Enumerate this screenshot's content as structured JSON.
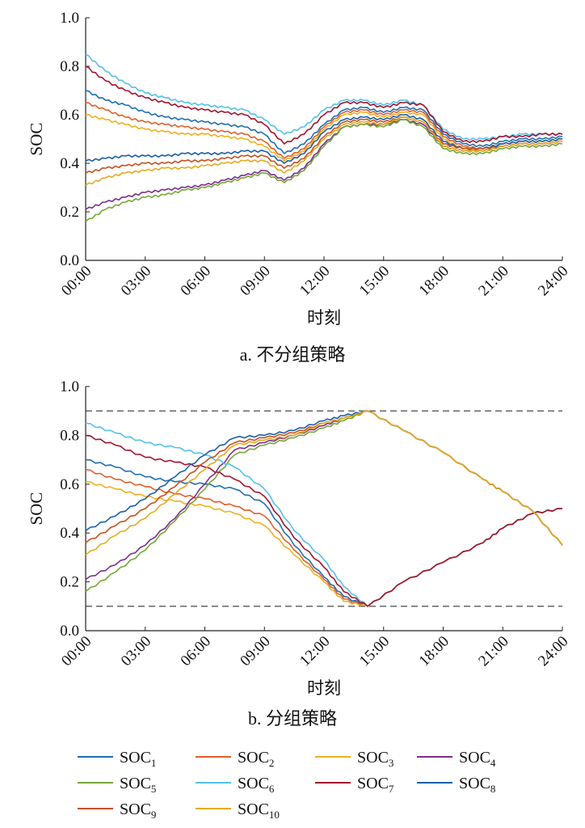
{
  "chart_data": [
    {
      "type": "line",
      "caption": "a. 不分组策略",
      "xlabel": "时刻",
      "ylabel": "SOC",
      "x_ticks": [
        "00:00",
        "03:00",
        "06:00",
        "09:00",
        "12:00",
        "15:00",
        "18:00",
        "21:00",
        "24:00"
      ],
      "y_ticks": [
        "0.0",
        "0.2",
        "0.4",
        "0.6",
        "0.8",
        "1.0"
      ],
      "xlim_hours": [
        0,
        24
      ],
      "ylim": [
        0,
        1
      ],
      "x_hours": [
        0,
        1,
        2,
        3,
        4,
        5,
        6,
        7,
        8,
        9,
        10,
        11,
        12,
        13,
        14,
        15,
        16,
        17,
        18,
        19,
        20,
        21,
        22,
        23,
        24
      ],
      "series": [
        {
          "name": "SOC1",
          "values": [
            0.7,
            0.66,
            0.64,
            0.61,
            0.59,
            0.58,
            0.57,
            0.56,
            0.55,
            0.52,
            0.44,
            0.48,
            0.56,
            0.62,
            0.63,
            0.61,
            0.63,
            0.62,
            0.52,
            0.48,
            0.47,
            0.49,
            0.5,
            0.5,
            0.51
          ]
        },
        {
          "name": "SOC2",
          "values": [
            0.65,
            0.62,
            0.59,
            0.57,
            0.56,
            0.55,
            0.54,
            0.53,
            0.52,
            0.49,
            0.42,
            0.46,
            0.55,
            0.61,
            0.62,
            0.6,
            0.62,
            0.61,
            0.51,
            0.47,
            0.46,
            0.48,
            0.49,
            0.49,
            0.5
          ]
        },
        {
          "name": "SOC3",
          "values": [
            0.6,
            0.58,
            0.56,
            0.54,
            0.53,
            0.52,
            0.52,
            0.51,
            0.5,
            0.47,
            0.41,
            0.45,
            0.54,
            0.6,
            0.61,
            0.59,
            0.61,
            0.6,
            0.5,
            0.46,
            0.45,
            0.47,
            0.48,
            0.48,
            0.49
          ]
        },
        {
          "name": "SOC4",
          "values": [
            0.21,
            0.24,
            0.26,
            0.28,
            0.29,
            0.3,
            0.31,
            0.33,
            0.35,
            0.37,
            0.33,
            0.38,
            0.48,
            0.55,
            0.56,
            0.56,
            0.58,
            0.56,
            0.47,
            0.45,
            0.45,
            0.47,
            0.48,
            0.48,
            0.49
          ]
        },
        {
          "name": "SOC5",
          "values": [
            0.16,
            0.21,
            0.24,
            0.26,
            0.27,
            0.29,
            0.3,
            0.32,
            0.34,
            0.36,
            0.32,
            0.37,
            0.47,
            0.55,
            0.56,
            0.55,
            0.58,
            0.55,
            0.46,
            0.44,
            0.44,
            0.46,
            0.47,
            0.47,
            0.48
          ]
        },
        {
          "name": "SOC6",
          "values": [
            0.85,
            0.78,
            0.73,
            0.69,
            0.67,
            0.65,
            0.64,
            0.63,
            0.62,
            0.58,
            0.52,
            0.55,
            0.62,
            0.66,
            0.66,
            0.64,
            0.66,
            0.64,
            0.54,
            0.5,
            0.5,
            0.51,
            0.52,
            0.52,
            0.52
          ]
        },
        {
          "name": "SOC7",
          "values": [
            0.8,
            0.74,
            0.7,
            0.67,
            0.65,
            0.63,
            0.62,
            0.61,
            0.6,
            0.56,
            0.48,
            0.52,
            0.6,
            0.65,
            0.65,
            0.63,
            0.65,
            0.64,
            0.53,
            0.49,
            0.49,
            0.51,
            0.51,
            0.52,
            0.52
          ]
        },
        {
          "name": "SOC8",
          "values": [
            0.41,
            0.42,
            0.43,
            0.43,
            0.43,
            0.44,
            0.44,
            0.44,
            0.45,
            0.45,
            0.4,
            0.44,
            0.53,
            0.58,
            0.59,
            0.58,
            0.6,
            0.58,
            0.49,
            0.46,
            0.46,
            0.48,
            0.49,
            0.49,
            0.5
          ]
        },
        {
          "name": "SOC9",
          "values": [
            0.36,
            0.38,
            0.39,
            0.4,
            0.4,
            0.41,
            0.41,
            0.42,
            0.43,
            0.43,
            0.38,
            0.42,
            0.51,
            0.57,
            0.58,
            0.57,
            0.59,
            0.57,
            0.48,
            0.46,
            0.46,
            0.47,
            0.48,
            0.48,
            0.49
          ]
        },
        {
          "name": "SOC10",
          "values": [
            0.31,
            0.34,
            0.36,
            0.37,
            0.38,
            0.38,
            0.39,
            0.4,
            0.41,
            0.41,
            0.36,
            0.41,
            0.5,
            0.56,
            0.57,
            0.56,
            0.59,
            0.57,
            0.47,
            0.45,
            0.45,
            0.47,
            0.48,
            0.48,
            0.49
          ]
        }
      ]
    },
    {
      "type": "line",
      "caption": "b. 分组策略",
      "xlabel": "时刻",
      "ylabel": "SOC",
      "x_ticks": [
        "00:00",
        "03:00",
        "06:00",
        "09:00",
        "12:00",
        "15:00",
        "18:00",
        "21:00",
        "24:00"
      ],
      "y_ticks": [
        "0.0",
        "0.2",
        "0.4",
        "0.6",
        "0.8",
        "1.0"
      ],
      "xlim_hours": [
        0,
        24
      ],
      "ylim": [
        0,
        1
      ],
      "limits": [
        0.9,
        0.1
      ],
      "x_hours": [
        0,
        1.5,
        3,
        4.5,
        6,
        7.5,
        9,
        10.5,
        12,
        13,
        14.2,
        16,
        18,
        20,
        21,
        22.5,
        24
      ],
      "series": [
        {
          "name": "SOC1",
          "values": [
            0.7,
            0.67,
            0.63,
            0.61,
            0.6,
            0.58,
            0.52,
            0.35,
            0.22,
            0.14,
            0.1,
            0.2,
            0.28,
            0.36,
            0.42,
            0.48,
            0.5
          ]
        },
        {
          "name": "SOC2",
          "values": [
            0.66,
            0.62,
            0.59,
            0.56,
            0.54,
            0.51,
            0.47,
            0.33,
            0.21,
            0.13,
            0.1,
            0.2,
            0.28,
            0.36,
            0.42,
            0.48,
            0.5
          ]
        },
        {
          "name": "SOC3",
          "values": [
            0.61,
            0.58,
            0.55,
            0.53,
            0.51,
            0.48,
            0.43,
            0.31,
            0.2,
            0.12,
            0.1,
            0.2,
            0.28,
            0.36,
            0.42,
            0.48,
            0.5
          ]
        },
        {
          "name": "SOC4",
          "values": [
            0.21,
            0.27,
            0.35,
            0.46,
            0.6,
            0.74,
            0.77,
            0.8,
            0.84,
            0.87,
            0.9,
            0.82,
            0.73,
            0.62,
            0.57,
            0.49,
            0.35
          ]
        },
        {
          "name": "SOC5",
          "values": [
            0.16,
            0.24,
            0.33,
            0.45,
            0.58,
            0.72,
            0.76,
            0.79,
            0.83,
            0.86,
            0.9,
            0.82,
            0.73,
            0.62,
            0.57,
            0.49,
            0.35
          ]
        },
        {
          "name": "SOC6",
          "values": [
            0.85,
            0.81,
            0.77,
            0.75,
            0.72,
            0.67,
            0.58,
            0.41,
            0.29,
            0.18,
            0.1,
            0.2,
            0.28,
            0.36,
            0.42,
            0.48,
            0.5
          ]
        },
        {
          "name": "SOC7",
          "values": [
            0.8,
            0.76,
            0.71,
            0.69,
            0.67,
            0.62,
            0.55,
            0.38,
            0.26,
            0.16,
            0.1,
            0.2,
            0.28,
            0.36,
            0.42,
            0.48,
            0.5
          ]
        },
        {
          "name": "SOC8",
          "values": [
            0.41,
            0.47,
            0.54,
            0.63,
            0.72,
            0.79,
            0.8,
            0.82,
            0.86,
            0.88,
            0.9,
            0.82,
            0.73,
            0.62,
            0.57,
            0.49,
            0.35
          ]
        },
        {
          "name": "SOC9",
          "values": [
            0.36,
            0.43,
            0.5,
            0.59,
            0.69,
            0.77,
            0.79,
            0.81,
            0.85,
            0.87,
            0.9,
            0.82,
            0.73,
            0.62,
            0.57,
            0.49,
            0.35
          ]
        },
        {
          "name": "SOC10",
          "values": [
            0.31,
            0.39,
            0.46,
            0.56,
            0.66,
            0.76,
            0.78,
            0.8,
            0.85,
            0.87,
            0.9,
            0.82,
            0.73,
            0.62,
            0.57,
            0.49,
            0.35
          ]
        }
      ]
    }
  ],
  "legend": {
    "items": [
      {
        "base": "SOC",
        "sub": "1",
        "color": "#1f6fb2"
      },
      {
        "base": "SOC",
        "sub": "2",
        "color": "#e0602a"
      },
      {
        "base": "SOC",
        "sub": "3",
        "color": "#f0b022"
      },
      {
        "base": "SOC",
        "sub": "4",
        "color": "#7e2f8e"
      },
      {
        "base": "SOC",
        "sub": "5",
        "color": "#73a838"
      },
      {
        "base": "SOC",
        "sub": "6",
        "color": "#56c1ea"
      },
      {
        "base": "SOC",
        "sub": "7",
        "color": "#a3142f"
      },
      {
        "base": "SOC",
        "sub": "8",
        "color": "#1a5fa8"
      },
      {
        "base": "SOC",
        "sub": "9",
        "color": "#c8501f"
      },
      {
        "base": "SOC",
        "sub": "10",
        "color": "#e6aa1e"
      }
    ]
  }
}
